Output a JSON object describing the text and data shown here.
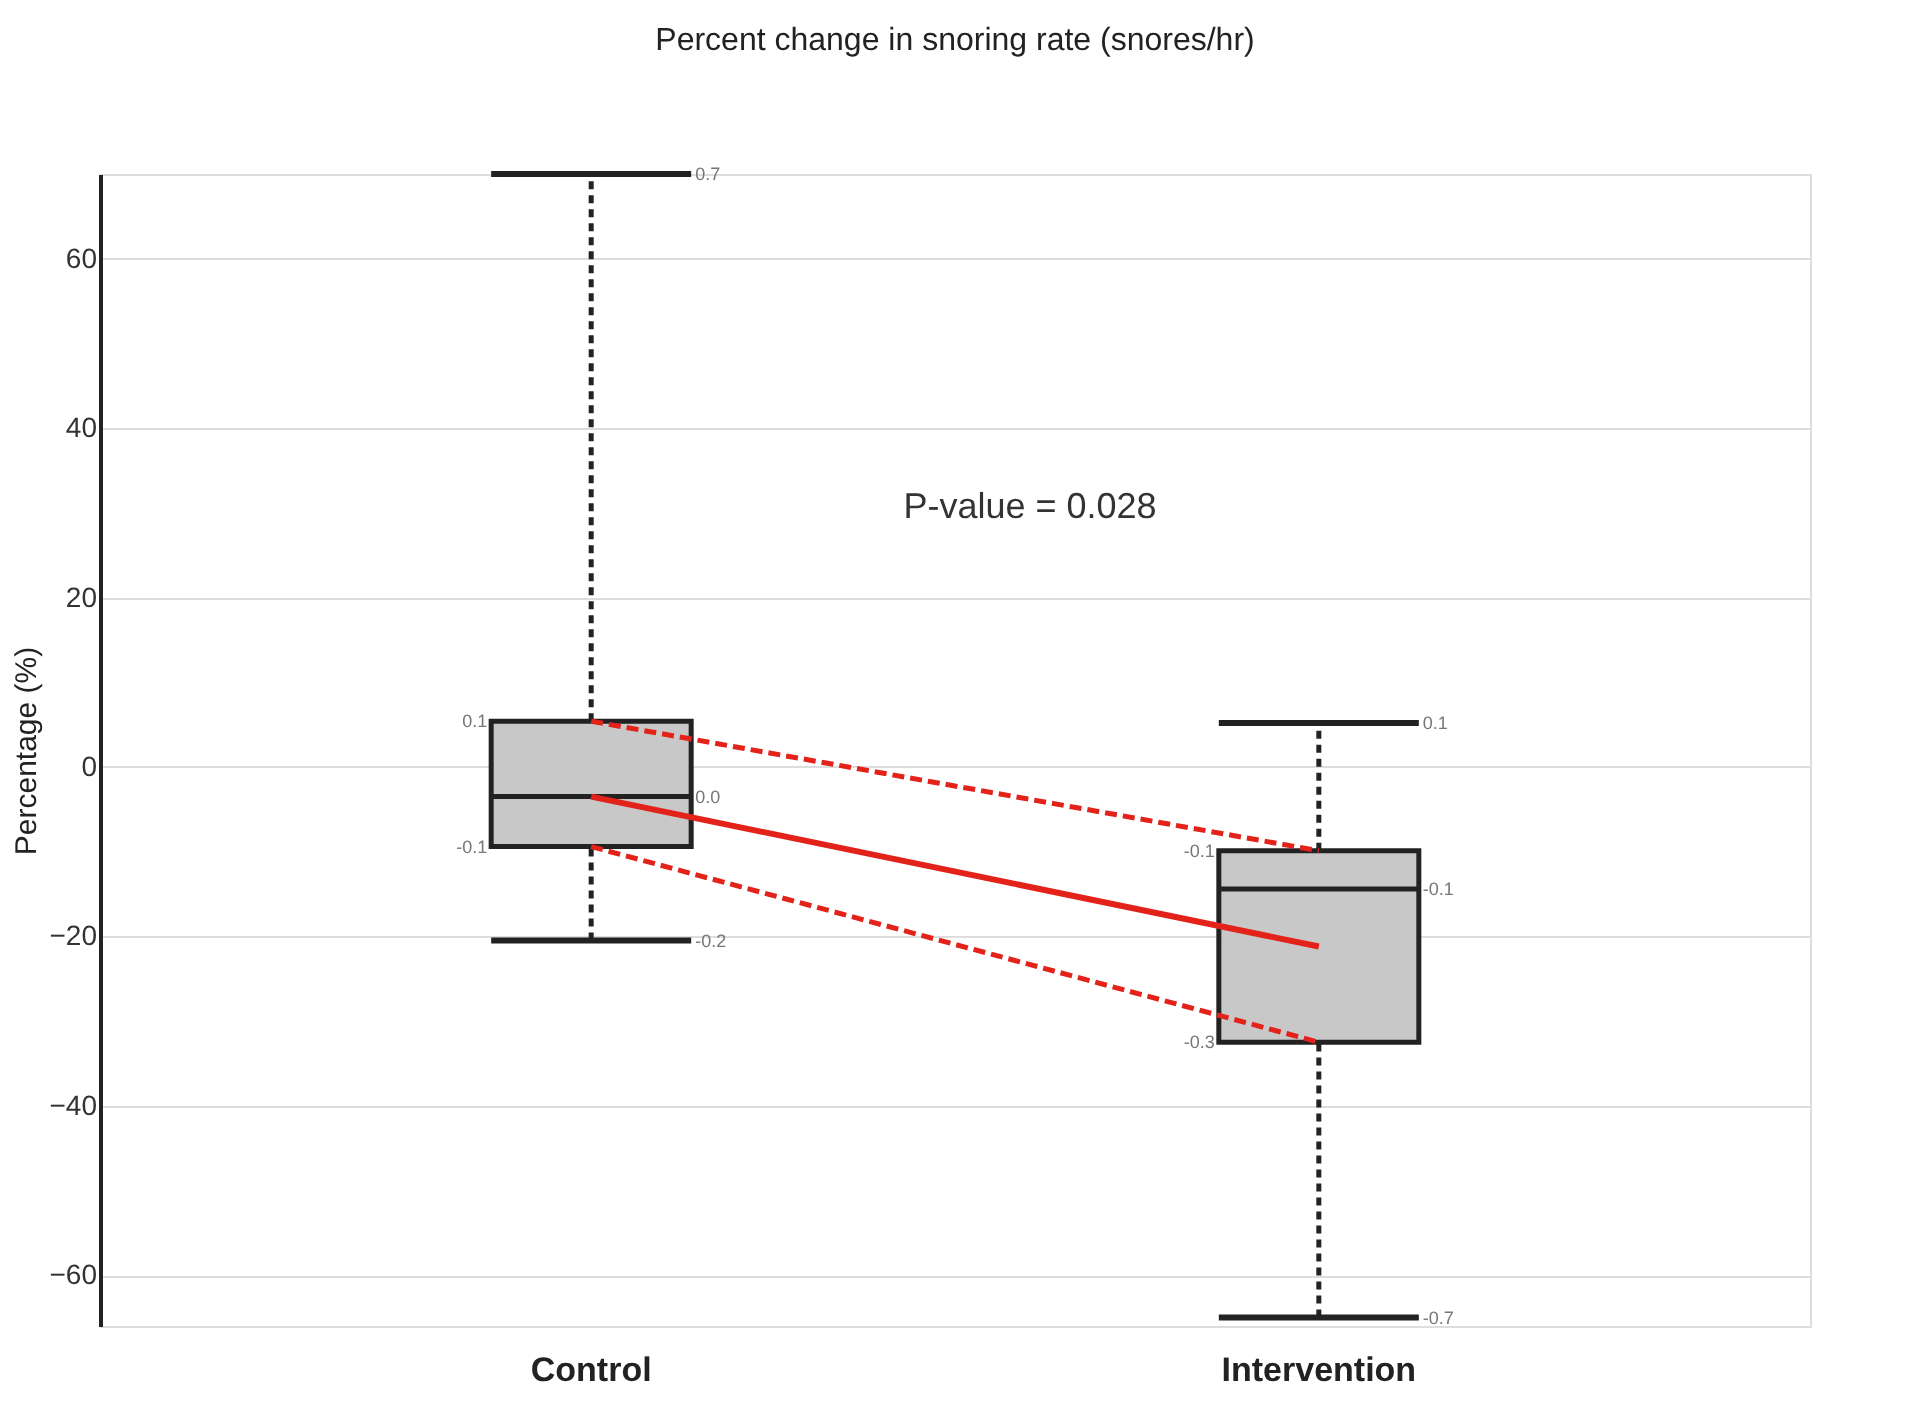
{
  "chart_data": {
    "type": "box",
    "title": "Percent change in snoring rate (snores/hr)",
    "ylabel": "Percentage (%)",
    "categories": [
      "Control",
      "Intervention"
    ],
    "boxes": [
      {
        "low": -20.5,
        "q1": -9.4,
        "median": -3.5,
        "q3": 5.4,
        "high": 70
      },
      {
        "low": -65,
        "q1": -32.5,
        "median": -14.4,
        "q3": -9.9,
        "high": 5.2
      }
    ],
    "color": "#c8c8c8",
    "series": [
      {
        "type": "line",
        "color": "#e32219",
        "line_style": "solid",
        "values": [
          -3.5,
          -21.2
        ]
      },
      {
        "type": "line",
        "color": "#e32219",
        "line_style": "dashed",
        "values": [
          5.4,
          -9.9
        ]
      },
      {
        "type": "line",
        "color": "#e32219",
        "line_style": "dashed",
        "values": [
          -9.4,
          -32.5
        ]
      }
    ],
    "ylim": [
      -66,
      70
    ],
    "yticks": [
      -60,
      -40,
      -20,
      0,
      20,
      40,
      60
    ],
    "grid": "y",
    "annotations": [
      {
        "text": "P-value = 0.028"
      },
      "0.7",
      "0.1",
      "0.0",
      "-0.1",
      "-0.2",
      "0.1",
      "-0.1",
      "-0.1",
      "-0.3",
      "-0.7"
    ]
  }
}
